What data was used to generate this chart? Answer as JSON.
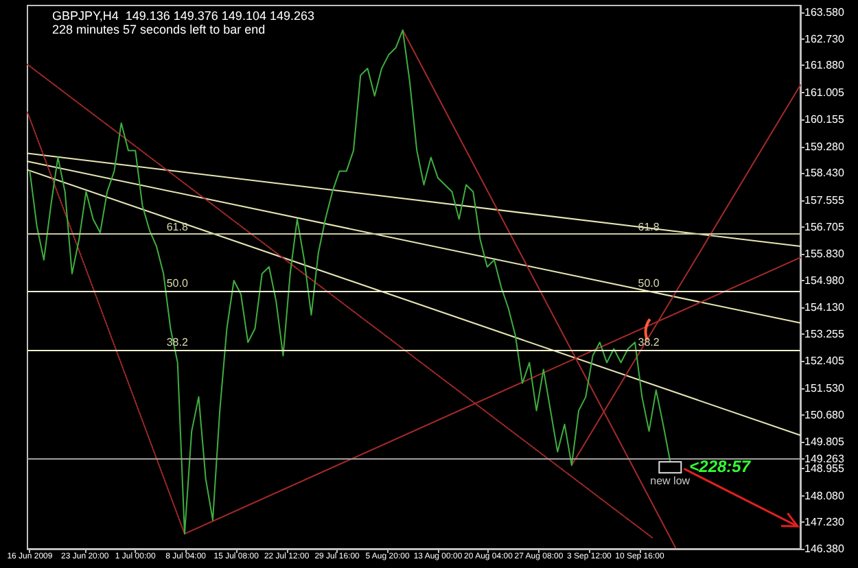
{
  "chart_data": {
    "type": "line",
    "title": "GBPJPY,H4  149.136 149.376 149.104 149.263",
    "subtitle": "228 minutes 57 seconds left to bar end",
    "x": [
      "2009-06-16",
      "2009-06-17",
      "2009-06-18",
      "2009-06-19",
      "2009-06-20",
      "2009-06-21",
      "2009-06-22",
      "2009-06-23",
      "2009-06-24",
      "2009-06-25",
      "2009-06-26",
      "2009-06-27",
      "2009-06-28",
      "2009-06-29",
      "2009-06-30",
      "2009-07-01",
      "2009-07-02",
      "2009-07-03",
      "2009-07-04",
      "2009-07-05",
      "2009-07-06",
      "2009-07-07",
      "2009-07-08",
      "2009-07-09",
      "2009-07-10",
      "2009-07-11",
      "2009-07-12",
      "2009-07-13",
      "2009-07-14",
      "2009-07-15",
      "2009-07-16",
      "2009-07-17",
      "2009-07-18",
      "2009-07-19",
      "2009-07-20",
      "2009-07-21",
      "2009-07-22",
      "2009-07-23",
      "2009-07-24",
      "2009-07-25",
      "2009-07-26",
      "2009-07-27",
      "2009-07-28",
      "2009-07-29",
      "2009-07-30",
      "2009-07-31",
      "2009-08-01",
      "2009-08-02",
      "2009-08-03",
      "2009-08-04",
      "2009-08-05",
      "2009-08-06",
      "2009-08-07",
      "2009-08-08",
      "2009-08-09",
      "2009-08-10",
      "2009-08-11",
      "2009-08-12",
      "2009-08-13",
      "2009-08-14",
      "2009-08-15",
      "2009-08-16",
      "2009-08-17",
      "2009-08-18",
      "2009-08-19",
      "2009-08-20",
      "2009-08-21",
      "2009-08-22",
      "2009-08-23",
      "2009-08-24",
      "2009-08-25",
      "2009-08-26",
      "2009-08-27",
      "2009-08-28",
      "2009-08-29",
      "2009-08-30",
      "2009-08-31",
      "2009-09-01",
      "2009-09-02",
      "2009-09-03",
      "2009-09-04",
      "2009-09-05",
      "2009-09-06",
      "2009-09-07",
      "2009-09-08",
      "2009-09-09",
      "2009-09-10",
      "2009-09-11",
      "2009-09-12",
      "2009-09-13",
      "2009-09-14",
      "2009-09-15"
    ],
    "series": [
      {
        "color": "#3fae3f",
        "values": [
          158.49,
          156.73,
          155.64,
          157.39,
          158.93,
          157.83,
          155.2,
          156.3,
          157.83,
          156.95,
          156.52,
          157.83,
          158.49,
          160.03,
          159.15,
          159.15,
          157.39,
          156.6,
          156.08,
          155.2,
          153.44,
          152.35,
          146.86,
          150.15,
          151.25,
          148.62,
          147.3,
          150.81,
          153.44,
          154.98,
          154.54,
          153.0,
          153.44,
          155.2,
          155.42,
          154.32,
          152.57,
          155.2,
          156.95,
          155.64,
          153.88,
          155.86,
          156.95,
          157.83,
          158.49,
          158.49,
          159.15,
          161.56,
          161.78,
          160.9,
          161.78,
          162.22,
          162.44,
          163.01,
          161.34,
          159.15,
          158.05,
          158.93,
          158.27,
          158.05,
          157.83,
          156.95,
          158.05,
          157.83,
          156.3,
          155.42,
          155.64,
          154.76,
          154.1,
          153.22,
          151.69,
          152.35,
          150.81,
          152.13,
          150.81,
          149.49,
          150.37,
          149.06,
          150.81,
          151.25,
          152.57,
          153.0,
          152.35,
          152.79,
          152.35,
          152.79,
          153.0,
          151.25,
          150.15,
          151.47,
          150.37,
          149.19
        ]
      },
      {
        "color": "#e6e6b4",
        "x": [
          "2009-06-15T16:00",
          "2009-10-03T12:00"
        ],
        "values": [
          159.06,
          156.08
        ]
      },
      {
        "color": "#e6e6b4",
        "x": [
          "2009-06-15T16:00",
          "2009-10-03T12:00"
        ],
        "values": [
          158.8,
          153.62
        ]
      },
      {
        "color": "#e6e6b4",
        "x": [
          "2009-06-15T16:00",
          "2009-10-03T12:00"
        ],
        "values": [
          158.53,
          150.02
        ]
      },
      {
        "color": "#a52a2a",
        "line_style": "dotted",
        "x": [
          "2009-06-15T16:00",
          "2009-09-12T12:00"
        ],
        "values": [
          161.91,
          146.73
        ]
      },
      {
        "color": "#a52a2a",
        "line_style": "dotted",
        "x": [
          "2009-06-15T16:00",
          "2009-07-08T00:00"
        ],
        "values": [
          160.38,
          146.86
        ]
      },
      {
        "color": "#a52a2a",
        "x": [
          "2009-08-08T00:00",
          "2009-09-15T18:00"
        ],
        "values": [
          163.01,
          146.42
        ]
      },
      {
        "color": "#a52a2a",
        "x": [
          "2009-07-08T00:00",
          "2009-10-03T12:00"
        ],
        "values": [
          146.86,
          155.72
        ]
      },
      {
        "color": "#a52a2a",
        "x": [
          "2009-09-01T00:00",
          "2009-10-03T12:00"
        ],
        "values": [
          149.06,
          161.25
        ]
      }
    ],
    "marker": "none",
    "line_style": "solid",
    "xlim": [
      "2009-06-15T16:00",
      "2009-10-03T12:00"
    ],
    "xticks": [
      {
        "value": "2009-06-16T00:00",
        "label": "16 Jun 2009"
      },
      {
        "value": "2009-06-23T20:00",
        "label": "23 Jun 20:00"
      },
      {
        "value": "2009-07-01T00:00",
        "label": "1 Jul 00:00"
      },
      {
        "value": "2009-07-08T04:00",
        "label": "8 Jul 04:00"
      },
      {
        "value": "2009-07-15T08:00",
        "label": "15 Jul 08:00"
      },
      {
        "value": "2009-07-22T12:00",
        "label": "22 Jul 12:00"
      },
      {
        "value": "2009-07-29T16:00",
        "label": "29 Jul 16:00"
      },
      {
        "value": "2009-08-05T20:00",
        "label": "5 Aug 20:00"
      },
      {
        "value": "2009-08-13T00:00",
        "label": "13 Aug 00:00"
      },
      {
        "value": "2009-08-20T04:00",
        "label": "20 Aug 04:00"
      },
      {
        "value": "2009-08-27T08:00",
        "label": "27 Aug 08:00"
      },
      {
        "value": "2009-09-03T12:00",
        "label": "3 Sep 12:00"
      },
      {
        "value": "2009-09-10T16:00",
        "label": "10 Sep 16:00"
      }
    ],
    "ylim": [
      146.38,
      163.8
    ],
    "yticks": [
      {
        "value": 163.58,
        "label": "163.580"
      },
      {
        "value": 162.73,
        "label": "162.730"
      },
      {
        "value": 161.88,
        "label": "161.880"
      },
      161.005,
      {
        "value": 160.155,
        "label": "160.155"
      },
      {
        "value": 159.28,
        "label": "159.280"
      },
      {
        "value": 158.43,
        "label": "158.430"
      },
      157.555,
      {
        "value": 156.705,
        "label": "156.705"
      },
      {
        "value": 155.83,
        "label": "155.830"
      },
      {
        "value": 154.98,
        "label": "154.980"
      },
      {
        "value": 154.13,
        "label": "154.130"
      },
      153.255,
      {
        "value": 152.405,
        "label": "152.405"
      },
      {
        "value": 151.53,
        "label": "151.530"
      },
      {
        "value": 150.68,
        "label": "150.680"
      },
      149.805,
      149.263,
      {
        "value": 148.955,
        "label": "148.955"
      },
      {
        "value": 148.08,
        "label": "148.080"
      },
      {
        "value": 147.23,
        "label": "147.230"
      },
      {
        "value": 146.38,
        "label": "146.380"
      }
    ],
    "ref_lines": [
      {
        "axis": "y",
        "value": 156.47,
        "color": "#c8c8a0"
      },
      {
        "axis": "y",
        "value": 154.63,
        "color": "#f0f0d0"
      },
      {
        "axis": "y",
        "value": 152.74,
        "color": "#f0f0d0"
      },
      {
        "axis": "y",
        "value": 149.263,
        "color": "#a0a0a0"
      }
    ],
    "annotations": [
      {
        "text": "61.8",
        "x": "2009-07-07",
        "y": 156.47
      },
      {
        "text": "61.8",
        "x": "2009-09-12",
        "y": 156.47
      },
      {
        "text": "50.0",
        "x": "2009-07-07",
        "y": 154.63
      },
      {
        "text": "50.0",
        "x": "2009-09-12",
        "y": 154.63
      },
      {
        "text": "38.2",
        "x": "2009-07-07",
        "y": 152.74
      },
      {
        "text": "38.2",
        "x": "2009-09-12",
        "y": 152.74
      },
      "new low",
      "<228:57"
    ]
  }
}
